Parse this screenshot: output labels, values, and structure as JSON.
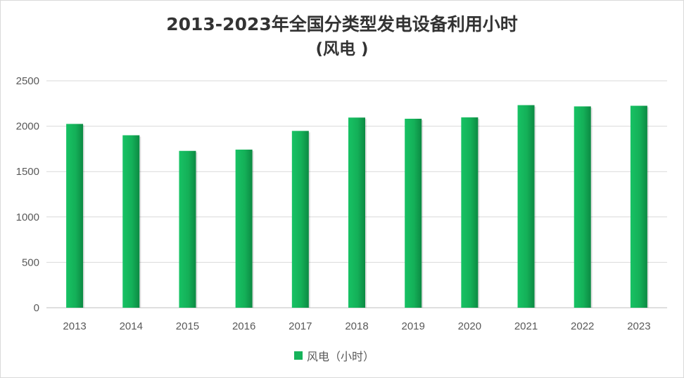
{
  "chart_data": {
    "type": "bar",
    "title": "2013-2023年全国分类型发电设备利用小时",
    "subtitle": "(风电 )",
    "categories": [
      "2013",
      "2014",
      "2015",
      "2016",
      "2017",
      "2018",
      "2019",
      "2020",
      "2021",
      "2022",
      "2023"
    ],
    "series": [
      {
        "name": "风电（小时）",
        "values": [
          2025,
          1900,
          1728,
          1742,
          1948,
          2095,
          2082,
          2097,
          2232,
          2218,
          2225
        ],
        "color": "#16b35a"
      }
    ],
    "xlabel": "",
    "ylabel": "",
    "ylim": [
      0,
      2500
    ],
    "yticks": [
      0,
      500,
      1000,
      1500,
      2000,
      2500
    ],
    "grid": true,
    "legend_position": "bottom"
  }
}
